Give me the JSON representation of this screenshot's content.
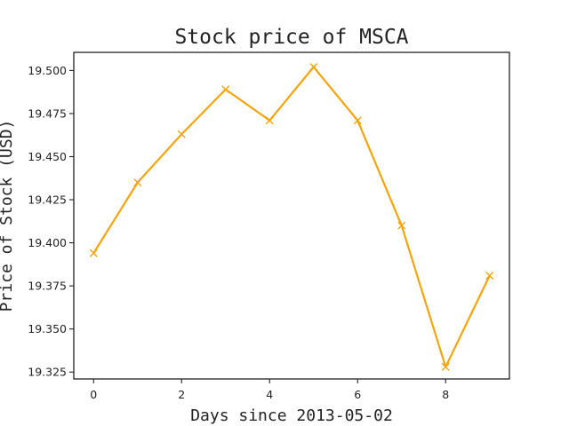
{
  "chart_data": {
    "type": "line",
    "title": "Stock price of MSCA",
    "xlabel": "Days since 2013-05-02",
    "ylabel": "Price of Stock (USD)",
    "x": [
      0,
      1,
      2,
      3,
      4,
      5,
      6,
      7,
      8,
      9
    ],
    "x_ticks": [
      "0",
      "2",
      "4",
      "6",
      "8"
    ],
    "y_ticks": [
      "19.325",
      "19.350",
      "19.375",
      "19.400",
      "19.425",
      "19.450",
      "19.475",
      "19.500"
    ],
    "xlim": [
      -0.45,
      9.45
    ],
    "ylim": [
      19.321,
      19.5105
    ],
    "series": [
      {
        "values": [
          19.394,
          19.435,
          19.463,
          19.489,
          19.471,
          19.502,
          19.471,
          19.41,
          19.328,
          19.381
        ],
        "color": "#f5a50a",
        "marker": "x"
      }
    ],
    "grid": false,
    "legend": "none"
  }
}
